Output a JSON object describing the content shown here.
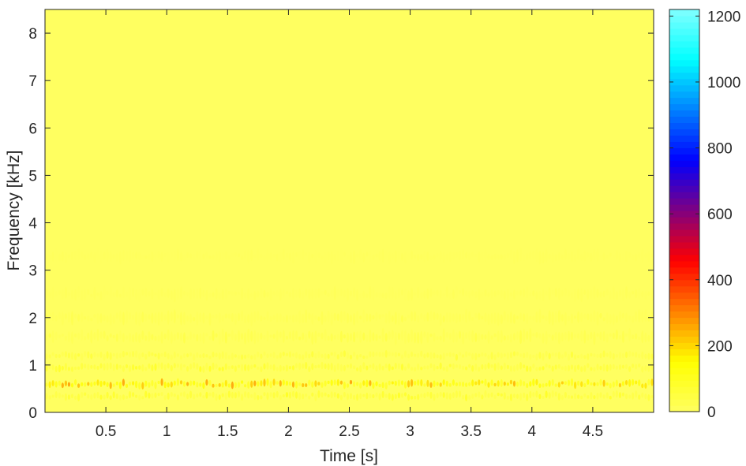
{
  "chart_data": {
    "type": "heatmap",
    "title": "",
    "xlabel": "Time [s]",
    "ylabel": "Frequency [kHz]",
    "xlim": [
      0,
      5
    ],
    "ylim": [
      0,
      8.5
    ],
    "x_ticks": [
      0.5,
      1,
      1.5,
      2,
      2.5,
      3,
      3.5,
      4,
      4.5
    ],
    "x_tick_labels": [
      "0.5",
      "1",
      "1.5",
      "2",
      "2.5",
      "3",
      "3.5",
      "4",
      "4.5"
    ],
    "y_ticks": [
      0,
      1,
      2,
      3,
      4,
      5,
      6,
      7,
      8
    ],
    "y_tick_labels": [
      "0",
      "1",
      "2",
      "3",
      "4",
      "5",
      "6",
      "7",
      "8"
    ],
    "colorbar": {
      "colormap": "autumn-jet-reversed",
      "range": [
        0,
        1220
      ],
      "ticks": [
        0,
        200,
        400,
        600,
        800,
        1000,
        1200
      ],
      "tick_labels": [
        "0",
        "200",
        "400",
        "600",
        "800",
        "1000",
        "1200"
      ],
      "colors": [
        "#ffff60",
        "#ffff00",
        "#ff8000",
        "#ff0000",
        "#800080",
        "#0000ff",
        "#0080ff",
        "#00ffff",
        "#80ffff"
      ]
    },
    "description_of_content": "Spectrogram of a signal; energy concentrated below ~2 kHz with strongest band near 0.6 kHz (values up to ~300); higher frequencies near 0",
    "energy_bands": [
      {
        "freq_khz": 0.6,
        "peak_value": 320
      },
      {
        "freq_khz": 0.35,
        "peak_value": 120
      },
      {
        "freq_khz": 0.95,
        "peak_value": 110
      },
      {
        "freq_khz": 1.2,
        "peak_value": 70
      },
      {
        "freq_khz": 1.6,
        "peak_value": 45
      },
      {
        "freq_khz": 2.0,
        "peak_value": 30
      },
      {
        "freq_khz": 2.5,
        "peak_value": 15
      },
      {
        "freq_khz": 3.3,
        "peak_value": 8
      }
    ]
  }
}
